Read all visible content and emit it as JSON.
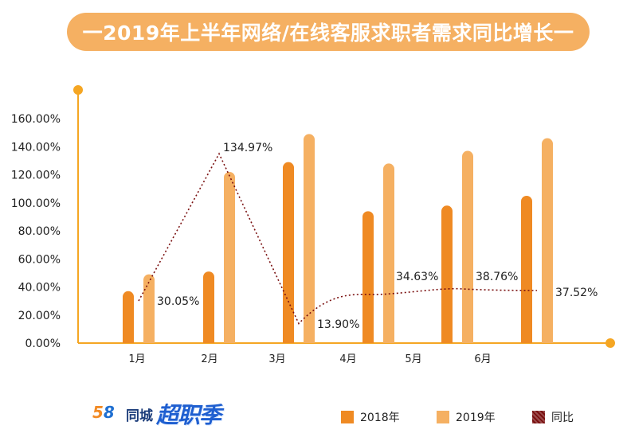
{
  "title": "一2019年上半年网络/在线客服求职者需求同比增长一",
  "colors": {
    "series_2018": "#ef8a23",
    "series_2019": "#f5b062",
    "yoy_line": "#7a1010",
    "axis": "#f5a623",
    "title_bg": "#f5b062"
  },
  "logo": {
    "part_58_five": "5",
    "part_58_eight": "8",
    "company": "同城",
    "brand": "超职季"
  },
  "legend": [
    {
      "label": "2018年",
      "color": "#ef8a23"
    },
    {
      "label": "2019年",
      "color": "#f5b062"
    },
    {
      "label": "同比",
      "color": "#7a1010"
    }
  ],
  "chart_data": {
    "type": "bar",
    "title": "一2019年上半年网络/在线客服求职者需求同比增长一",
    "ylim": [
      0,
      160
    ],
    "y_tick_labels": [
      "0.00%",
      "20.00%",
      "40.00%",
      "60.00%",
      "80.00%",
      "100.00%",
      "120.00%",
      "140.00%",
      "160.00%"
    ],
    "categories": [
      "1月",
      "2月",
      "3月",
      "4月",
      "5月",
      "6月"
    ],
    "series": [
      {
        "name": "2018年",
        "type": "bar",
        "values": [
          37,
          51,
          129,
          94,
          98,
          105
        ]
      },
      {
        "name": "2019年",
        "type": "bar",
        "values": [
          49,
          122,
          149,
          128,
          137,
          146
        ]
      },
      {
        "name": "同比",
        "type": "line",
        "style": "dotted",
        "values": [
          30.05,
          134.97,
          13.9,
          34.63,
          38.76,
          37.52
        ],
        "labels": [
          "30.05%",
          "134.97%",
          "13.90%",
          "34.63%",
          "38.76%",
          "37.52%"
        ]
      }
    ],
    "category_label_positions_note": "category labels are printed offset to the left of the bar groups",
    "grid": false,
    "legend_position": "bottom"
  }
}
